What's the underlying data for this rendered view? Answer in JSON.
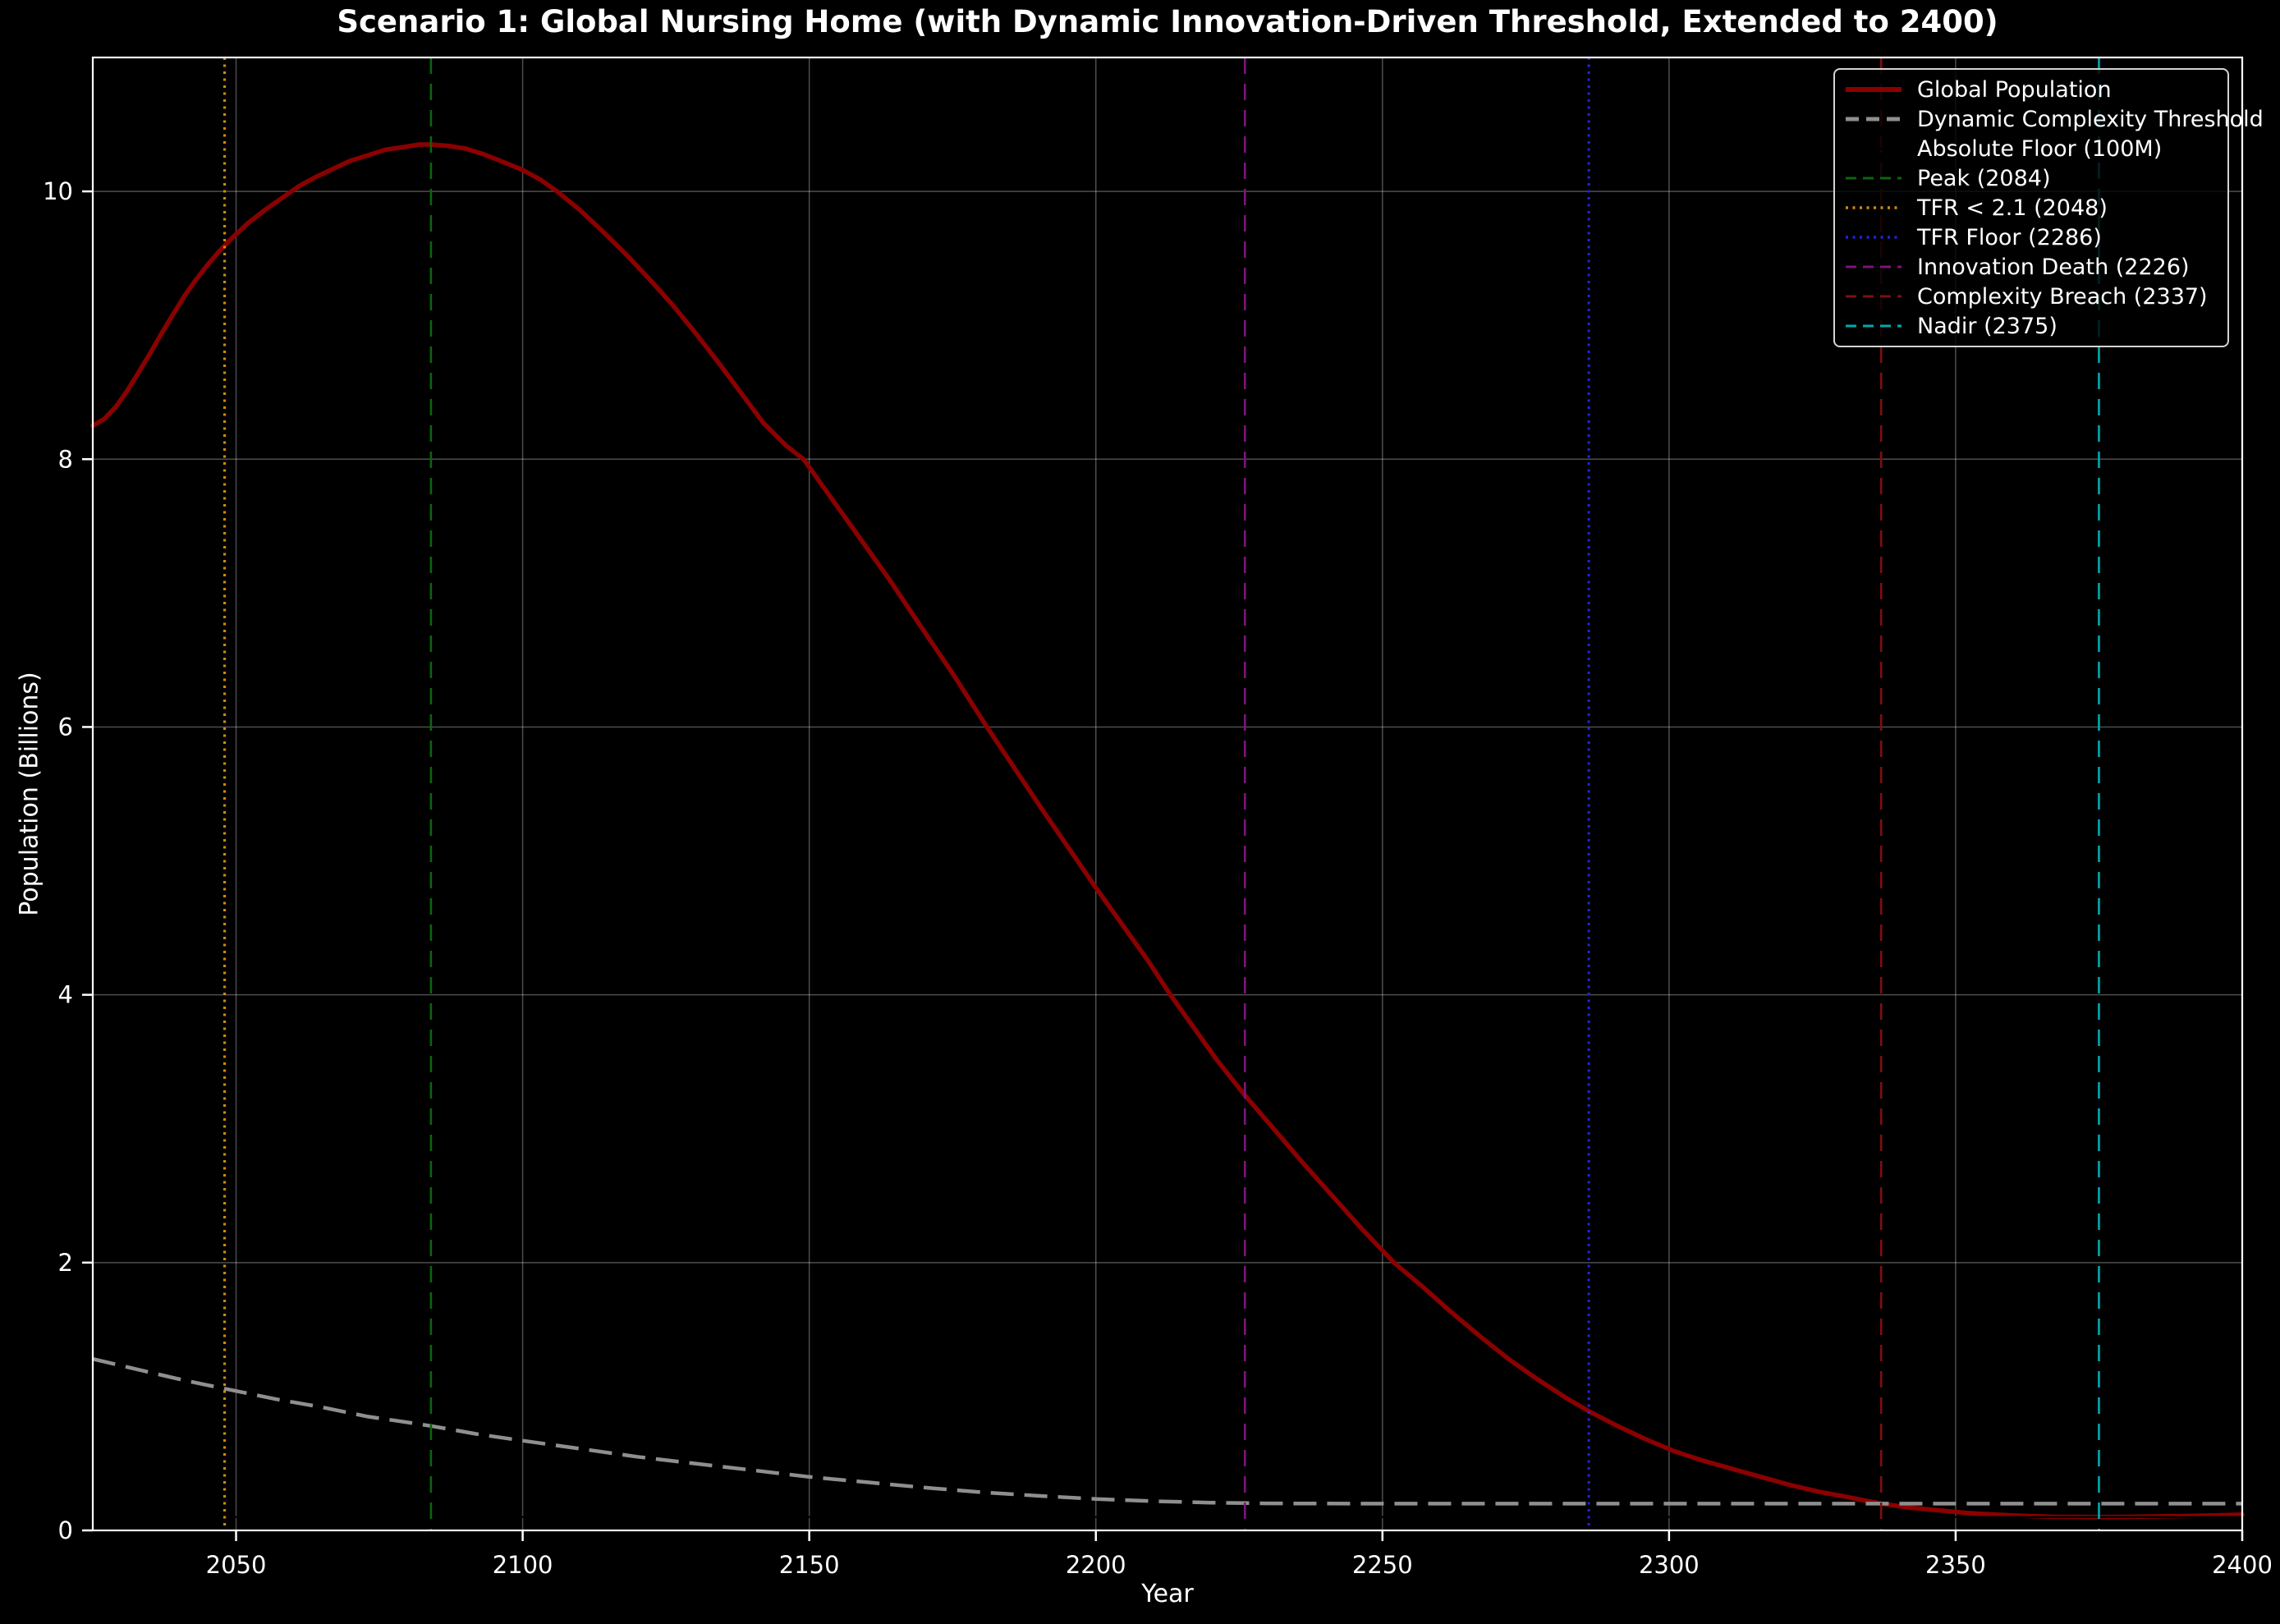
{
  "chart_data": {
    "type": "line",
    "title": "Scenario 1: Global Nursing Home (with Dynamic Innovation-Driven Threshold, Extended to 2400)",
    "xlabel": "Year",
    "ylabel": "Population (Billions)",
    "xlim": [
      2025,
      2400
    ],
    "ylim": [
      0,
      11
    ],
    "xticks": [
      2050,
      2100,
      2150,
      2200,
      2250,
      2300,
      2350,
      2400
    ],
    "yticks": [
      0,
      2,
      4,
      6,
      8,
      10
    ],
    "grid": true,
    "legend_position": "upper right",
    "colors": {
      "background": "#000000",
      "text": "#ffffff",
      "grid": "rgba(255,255,255,0.3)",
      "spine": "#ffffff"
    },
    "series": [
      {
        "id": "global-population",
        "name": "Global Population",
        "color": "#8b0000",
        "style": "solid",
        "width": 5.5,
        "points": [
          [
            2025,
            8.25
          ],
          [
            2027,
            8.3
          ],
          [
            2029,
            8.39
          ],
          [
            2031,
            8.51
          ],
          [
            2033,
            8.65
          ],
          [
            2035,
            8.79
          ],
          [
            2037,
            8.94
          ],
          [
            2039,
            9.08
          ],
          [
            2041,
            9.22
          ],
          [
            2043,
            9.34
          ],
          [
            2045,
            9.45
          ],
          [
            2047,
            9.55
          ],
          [
            2049,
            9.64
          ],
          [
            2052,
            9.76
          ],
          [
            2055,
            9.86
          ],
          [
            2058,
            9.95
          ],
          [
            2061,
            10.04
          ],
          [
            2064,
            10.11
          ],
          [
            2067,
            10.17
          ],
          [
            2070,
            10.23
          ],
          [
            2073,
            10.27
          ],
          [
            2076,
            10.31
          ],
          [
            2079,
            10.33
          ],
          [
            2082,
            10.35
          ],
          [
            2084,
            10.35
          ],
          [
            2087,
            10.34
          ],
          [
            2090,
            10.32
          ],
          [
            2093,
            10.28
          ],
          [
            2096,
            10.23
          ],
          [
            2100,
            10.16
          ],
          [
            2103,
            10.09
          ],
          [
            2106,
            10.0
          ],
          [
            2110,
            9.86
          ],
          [
            2114,
            9.7
          ],
          [
            2118,
            9.53
          ],
          [
            2122,
            9.35
          ],
          [
            2126,
            9.16
          ],
          [
            2130,
            8.95
          ],
          [
            2134,
            8.73
          ],
          [
            2138,
            8.5
          ],
          [
            2142,
            8.27
          ],
          [
            2146,
            8.1
          ],
          [
            2149,
            8.0
          ],
          [
            2154,
            7.7
          ],
          [
            2159,
            7.4
          ],
          [
            2164,
            7.1
          ],
          [
            2169,
            6.78
          ],
          [
            2175,
            6.4
          ],
          [
            2181,
            6.0
          ],
          [
            2186,
            5.68
          ],
          [
            2191,
            5.36
          ],
          [
            2196,
            5.05
          ],
          [
            2200,
            4.8
          ],
          [
            2204,
            4.56
          ],
          [
            2209,
            4.26
          ],
          [
            2213,
            4.0
          ],
          [
            2217,
            3.76
          ],
          [
            2221,
            3.52
          ],
          [
            2226,
            3.25
          ],
          [
            2231,
            3.0
          ],
          [
            2236,
            2.75
          ],
          [
            2241,
            2.51
          ],
          [
            2246,
            2.27
          ],
          [
            2252,
            2.0
          ],
          [
            2257,
            1.82
          ],
          [
            2262,
            1.63
          ],
          [
            2267,
            1.45
          ],
          [
            2272,
            1.28
          ],
          [
            2277,
            1.13
          ],
          [
            2282,
            0.99
          ],
          [
            2286,
            0.89
          ],
          [
            2291,
            0.78
          ],
          [
            2296,
            0.68
          ],
          [
            2301,
            0.59
          ],
          [
            2306,
            0.52
          ],
          [
            2311,
            0.46
          ],
          [
            2316,
            0.4
          ],
          [
            2321,
            0.34
          ],
          [
            2326,
            0.29
          ],
          [
            2331,
            0.25
          ],
          [
            2337,
            0.2
          ],
          [
            2342,
            0.17
          ],
          [
            2347,
            0.15
          ],
          [
            2352,
            0.13
          ],
          [
            2357,
            0.118
          ],
          [
            2362,
            0.108
          ],
          [
            2367,
            0.102
          ],
          [
            2371,
            0.101
          ],
          [
            2375,
            0.1
          ],
          [
            2380,
            0.101
          ],
          [
            2385,
            0.104
          ],
          [
            2390,
            0.107
          ],
          [
            2395,
            0.112
          ],
          [
            2400,
            0.118
          ]
        ]
      },
      {
        "id": "dynamic-complexity-threshold",
        "name": "Dynamic Complexity Threshold",
        "color": "#8f8f8f",
        "style": "dashed",
        "width": 4.5,
        "points": [
          [
            2025,
            1.28
          ],
          [
            2033,
            1.2
          ],
          [
            2041,
            1.12
          ],
          [
            2049,
            1.05
          ],
          [
            2057,
            0.98
          ],
          [
            2065,
            0.92
          ],
          [
            2073,
            0.85
          ],
          [
            2081,
            0.8
          ],
          [
            2084,
            0.78
          ],
          [
            2092,
            0.72
          ],
          [
            2100,
            0.67
          ],
          [
            2110,
            0.61
          ],
          [
            2120,
            0.55
          ],
          [
            2130,
            0.5
          ],
          [
            2140,
            0.45
          ],
          [
            2150,
            0.4
          ],
          [
            2160,
            0.36
          ],
          [
            2170,
            0.32
          ],
          [
            2180,
            0.285
          ],
          [
            2190,
            0.258
          ],
          [
            2200,
            0.235
          ],
          [
            2210,
            0.218
          ],
          [
            2220,
            0.207
          ],
          [
            2230,
            0.202
          ],
          [
            2245,
            0.2
          ],
          [
            2260,
            0.2
          ],
          [
            2280,
            0.2
          ],
          [
            2300,
            0.2
          ],
          [
            2320,
            0.2
          ],
          [
            2340,
            0.2
          ],
          [
            2360,
            0.2
          ],
          [
            2380,
            0.2
          ],
          [
            2400,
            0.2
          ]
        ]
      },
      {
        "id": "absolute-floor",
        "name": "Absolute Floor (100M)",
        "color": "#000000",
        "style": "solid",
        "width": 2.5,
        "points": [
          [
            2025,
            0.1
          ],
          [
            2400,
            0.1
          ]
        ]
      }
    ],
    "event_lines": [
      {
        "id": "tfr-below-2-1",
        "name": "TFR < 2.1 (2048)",
        "x": 2048,
        "color": "#cc8a0e",
        "style": "dotted"
      },
      {
        "id": "peak",
        "name": "Peak (2084)",
        "x": 2084,
        "color": "#0e640e",
        "style": "dashed"
      },
      {
        "id": "innovation-death",
        "name": "Innovation Death (2226)",
        "x": 2226,
        "color": "#7c157c",
        "style": "dashed"
      },
      {
        "id": "tfr-floor",
        "name": "TFR Floor (2286)",
        "x": 2286,
        "color": "#2222dd",
        "style": "dotted"
      },
      {
        "id": "complexity-breach",
        "name": "Complexity Breach (2337)",
        "x": 2337,
        "color": "#7d1010",
        "style": "dashed"
      },
      {
        "id": "nadir",
        "name": "Nadir (2375)",
        "x": 2375,
        "color": "#00aaad",
        "style": "dashed"
      }
    ],
    "legend": [
      {
        "id": "global-population",
        "label": "Global Population",
        "color": "#8b0000",
        "style": "solid",
        "width": 6
      },
      {
        "id": "dynamic-complexity-threshold",
        "label": "Dynamic Complexity Threshold",
        "color": "#8f8f8f",
        "style": "dashed",
        "width": 5
      },
      {
        "id": "absolute-floor",
        "label": "Absolute Floor (100M)",
        "color": "#000000",
        "style": "solid",
        "width": 2.5
      },
      {
        "id": "peak",
        "label": "Peak (2084)",
        "color": "#0e640e",
        "style": "dashed",
        "width": 3
      },
      {
        "id": "tfr-below-2-1",
        "label": "TFR < 2.1 (2048)",
        "color": "#cc8a0e",
        "style": "dotted",
        "width": 3.4
      },
      {
        "id": "tfr-floor",
        "label": "TFR Floor (2286)",
        "color": "#2222dd",
        "style": "dotted",
        "width": 3.4
      },
      {
        "id": "innovation-death",
        "label": "Innovation Death (2226)",
        "color": "#7c157c",
        "style": "dashed",
        "width": 3
      },
      {
        "id": "complexity-breach",
        "label": "Complexity Breach (2337)",
        "color": "#7d1010",
        "style": "dashed",
        "width": 3
      },
      {
        "id": "nadir",
        "label": "Nadir (2375)",
        "color": "#00aaad",
        "style": "dashed",
        "width": 3
      }
    ]
  }
}
